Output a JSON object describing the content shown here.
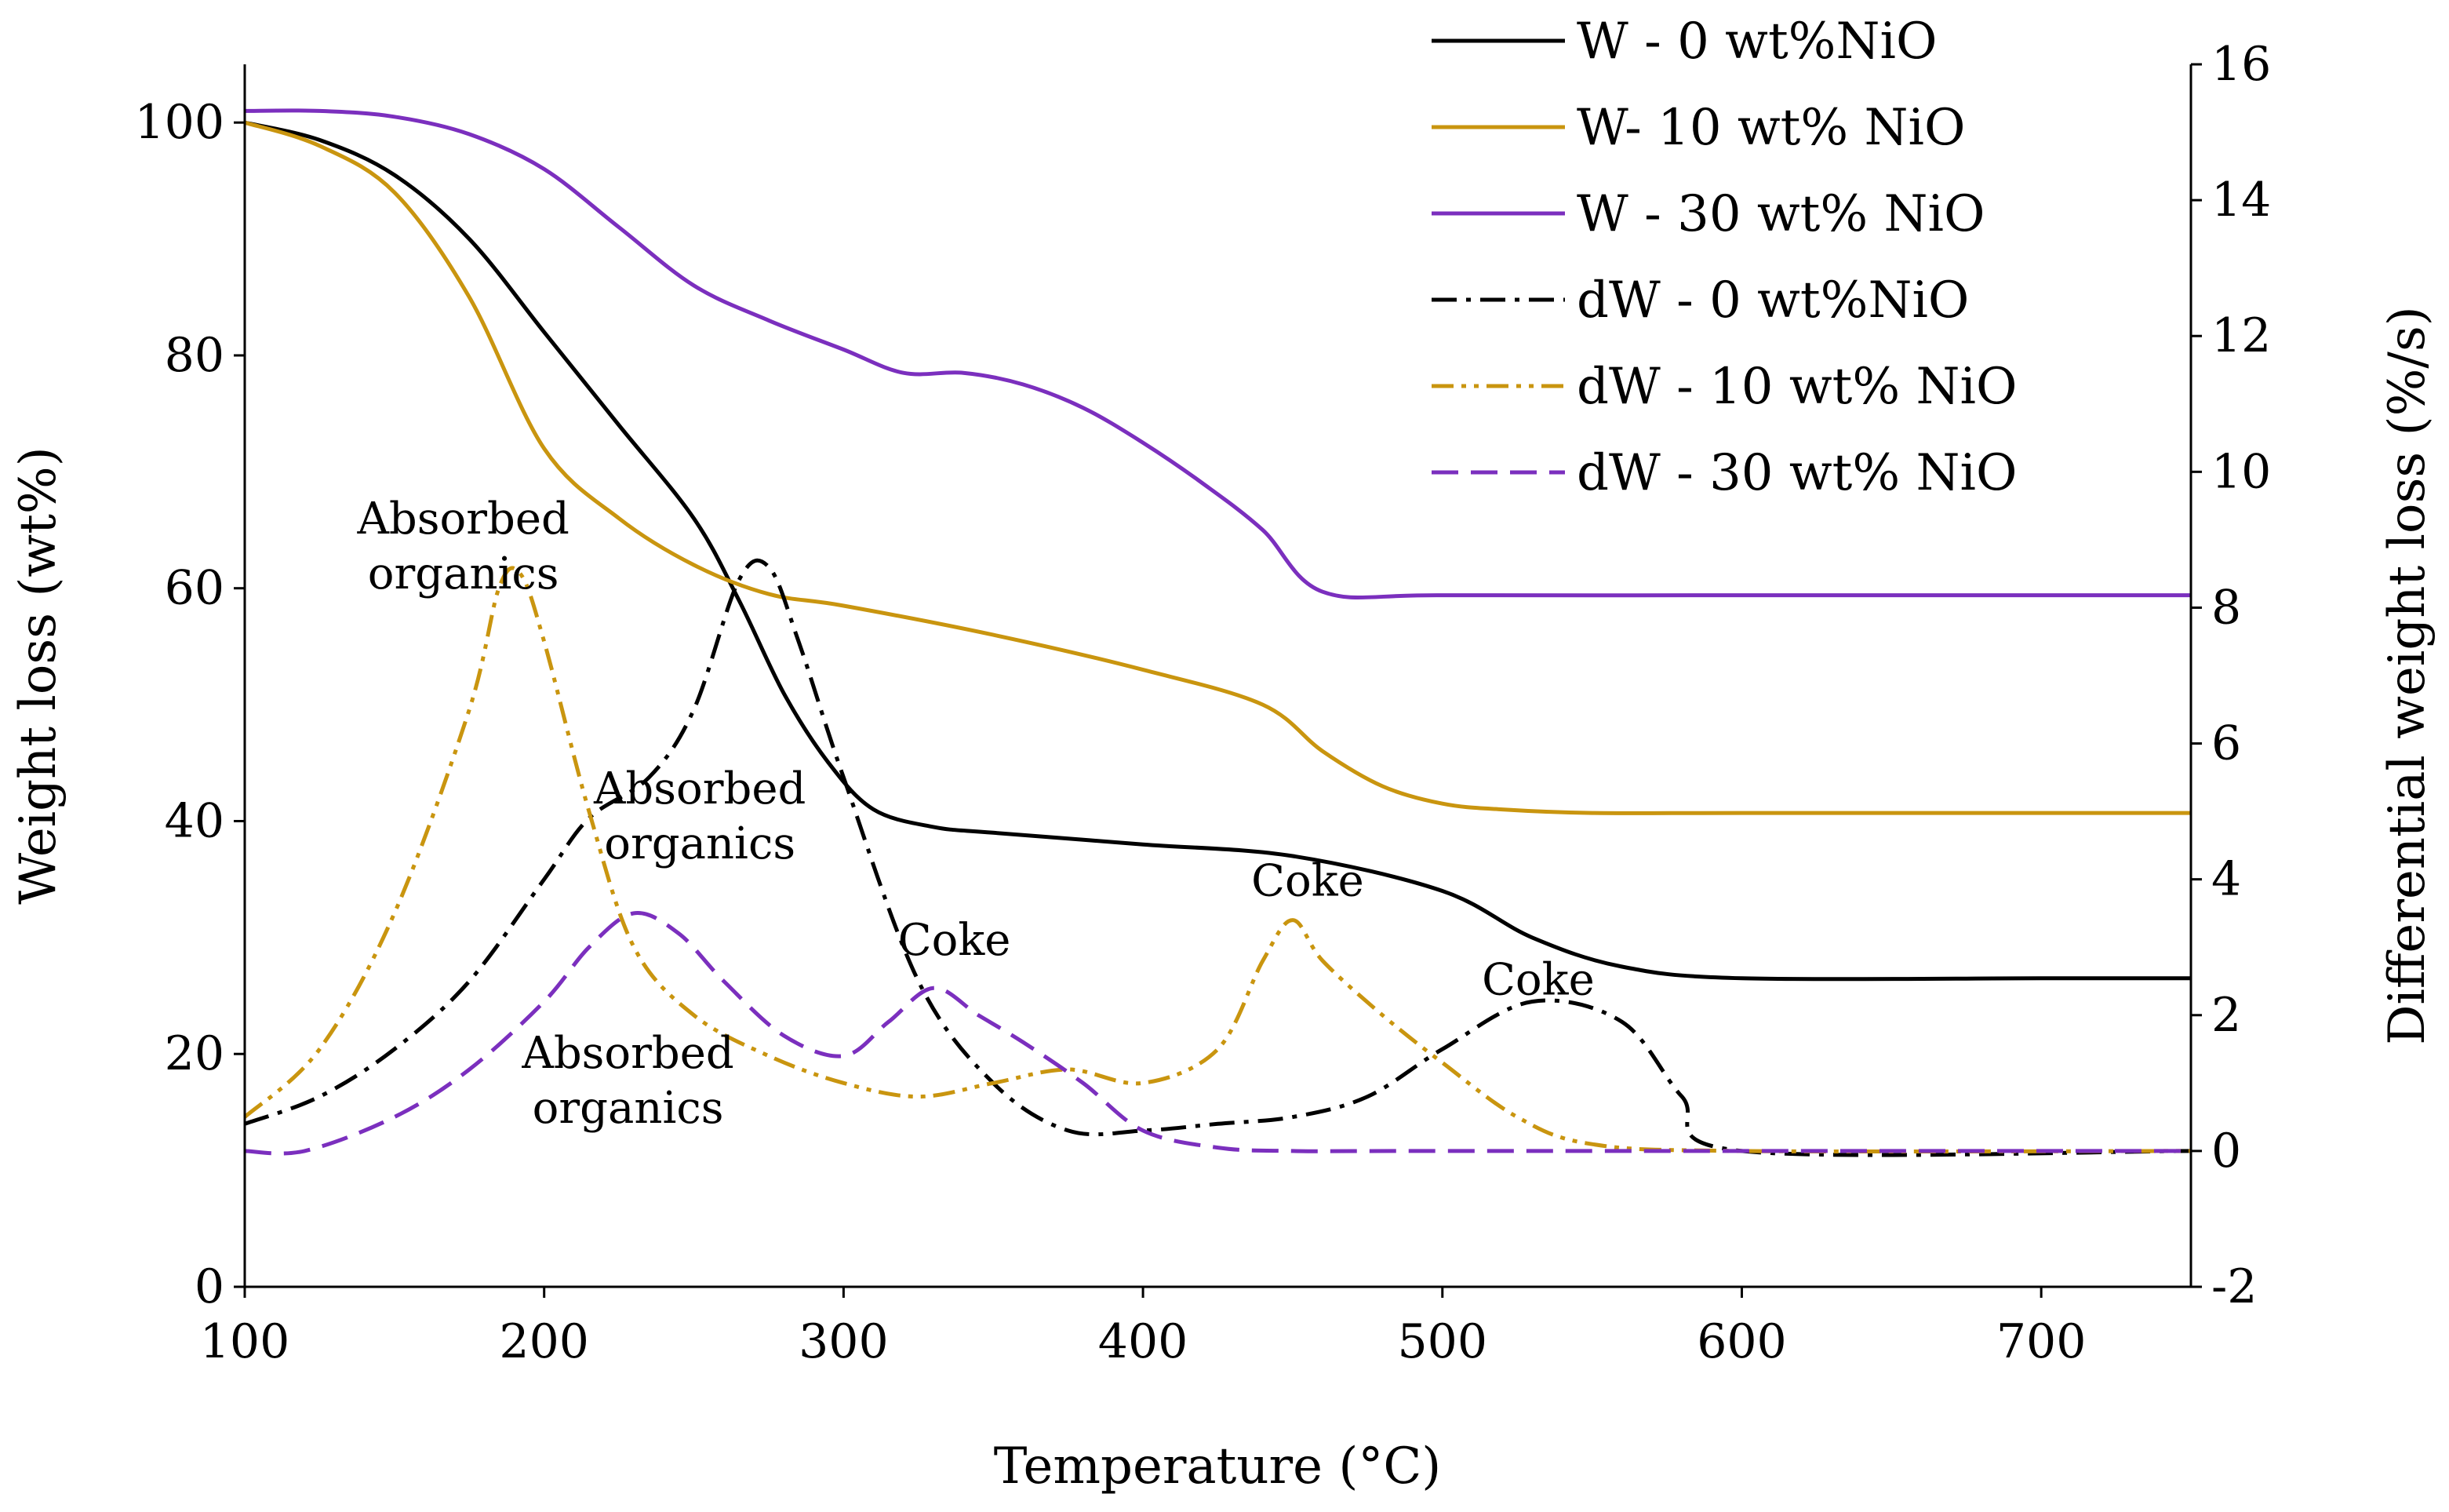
{
  "chart_data": {
    "type": "line",
    "title": "",
    "xlabel": "Temperature (°C)",
    "ylabel_left": "Weight loss (wt%)",
    "ylabel_right": "Differential weight loss (%/s)",
    "xlim": [
      100,
      750
    ],
    "ylim_left": [
      0,
      105
    ],
    "ylim_right": [
      -2,
      16
    ],
    "x_ticks": [
      100,
      200,
      300,
      400,
      500,
      600,
      700
    ],
    "y_left_ticks": [
      0,
      20,
      40,
      60,
      80,
      100
    ],
    "y_right_ticks": [
      -2,
      0,
      2,
      4,
      6,
      8,
      10,
      12,
      14,
      16
    ],
    "grid": false,
    "legend_position": "top-right",
    "series": [
      {
        "name": "W - 0 wt%NiO",
        "axis": "left",
        "color": "#000000",
        "style": "solid",
        "x": [
          100,
          125,
          150,
          175,
          200,
          225,
          250,
          265,
          280,
          295,
          310,
          330,
          350,
          400,
          450,
          500,
          530,
          560,
          600,
          700,
          750
        ],
        "y": [
          100,
          98.5,
          95.5,
          90,
          82,
          74,
          66,
          59,
          51,
          45,
          41,
          39.5,
          39,
          38,
          37,
          34,
          30,
          27.5,
          26.5,
          26.5,
          26.5
        ]
      },
      {
        "name": "W- 10 wt% NiO",
        "axis": "left",
        "color": "#C9950F",
        "style": "solid",
        "x": [
          100,
          125,
          150,
          175,
          200,
          225,
          250,
          275,
          300,
          350,
          400,
          440,
          460,
          480,
          500,
          520,
          550,
          600,
          700,
          750
        ],
        "y": [
          100,
          98,
          94,
          85,
          72,
          66,
          62,
          59.5,
          58.5,
          56,
          53,
          50,
          46,
          43,
          41.5,
          41,
          40.7,
          40.7,
          40.7,
          40.7
        ]
      },
      {
        "name": "W - 30 wt% NiO",
        "axis": "left",
        "color": "#7B2FBE",
        "style": "solid",
        "x": [
          100,
          125,
          150,
          175,
          200,
          225,
          250,
          275,
          300,
          320,
          340,
          360,
          380,
          400,
          420,
          440,
          460,
          500,
          600,
          700,
          750
        ],
        "y": [
          101,
          101,
          100.5,
          99,
          96,
          91,
          86,
          83,
          80.5,
          78.5,
          78.5,
          77.5,
          75.5,
          72.5,
          69,
          65,
          59.7,
          59.4,
          59.4,
          59.4,
          59.4
        ]
      },
      {
        "name": "dW - 0 wt%NiO",
        "axis": "right",
        "color": "#000000",
        "style": "dashdot",
        "x": [
          100,
          125,
          150,
          175,
          200,
          215,
          235,
          250,
          265,
          275,
          285,
          300,
          325,
          350,
          375,
          400,
          425,
          450,
          475,
          500,
          530,
          560,
          580,
          600,
          750
        ],
        "y": [
          0.4,
          0.8,
          1.5,
          2.5,
          4.0,
          4.9,
          5.5,
          6.5,
          8.4,
          8.6,
          7.5,
          5.5,
          2.5,
          1.0,
          0.3,
          0.3,
          0.4,
          0.5,
          0.8,
          1.5,
          2.2,
          1.9,
          0.8,
          0.0,
          0.0
        ]
      },
      {
        "name": "dW - 10 wt% NiO",
        "axis": "right",
        "color": "#C9950F",
        "style": "dashdotdot",
        "x": [
          100,
          125,
          150,
          175,
          185,
          192,
          200,
          215,
          230,
          250,
          275,
          300,
          325,
          350,
          375,
          400,
          425,
          440,
          450,
          460,
          480,
          500,
          525,
          550,
          600,
          750
        ],
        "y": [
          0.5,
          1.5,
          3.5,
          6.5,
          8.3,
          8.5,
          7.5,
          5.0,
          3.0,
          2.0,
          1.4,
          1.0,
          0.8,
          1.0,
          1.2,
          1.0,
          1.5,
          2.8,
          3.4,
          2.8,
          2.0,
          1.3,
          0.5,
          0.1,
          0.0,
          0.0
        ]
      },
      {
        "name": "dW - 30 wt% NiO",
        "axis": "right",
        "color": "#7B2FBE",
        "style": "dashed",
        "x": [
          100,
          120,
          150,
          175,
          200,
          215,
          230,
          245,
          260,
          280,
          300,
          315,
          330,
          345,
          360,
          380,
          400,
          425,
          450,
          500,
          750
        ],
        "y": [
          0.0,
          0.0,
          0.5,
          1.2,
          2.2,
          3.0,
          3.5,
          3.2,
          2.5,
          1.7,
          1.4,
          1.9,
          2.4,
          2.0,
          1.6,
          1.0,
          0.3,
          0.05,
          0.0,
          0.0,
          0.0
        ]
      }
    ],
    "annotations": [
      {
        "lines": [
          "Absorbed",
          "organics"
        ],
        "x": 173,
        "y": 64.7,
        "axis": "left"
      },
      {
        "lines": [
          "Absorbed",
          "organics"
        ],
        "x": 252,
        "y": 41.5,
        "axis": "left"
      },
      {
        "lines": [
          "Absorbed",
          "organics"
        ],
        "x": 228,
        "y": 18.8,
        "axis": "left"
      },
      {
        "lines": [
          "Coke"
        ],
        "x": 337,
        "y": 28.5,
        "axis": "left"
      },
      {
        "lines": [
          "Coke"
        ],
        "x": 455,
        "y": 33.6,
        "axis": "left"
      },
      {
        "lines": [
          "Coke"
        ],
        "x": 532,
        "y": 25.1,
        "axis": "left"
      }
    ]
  }
}
